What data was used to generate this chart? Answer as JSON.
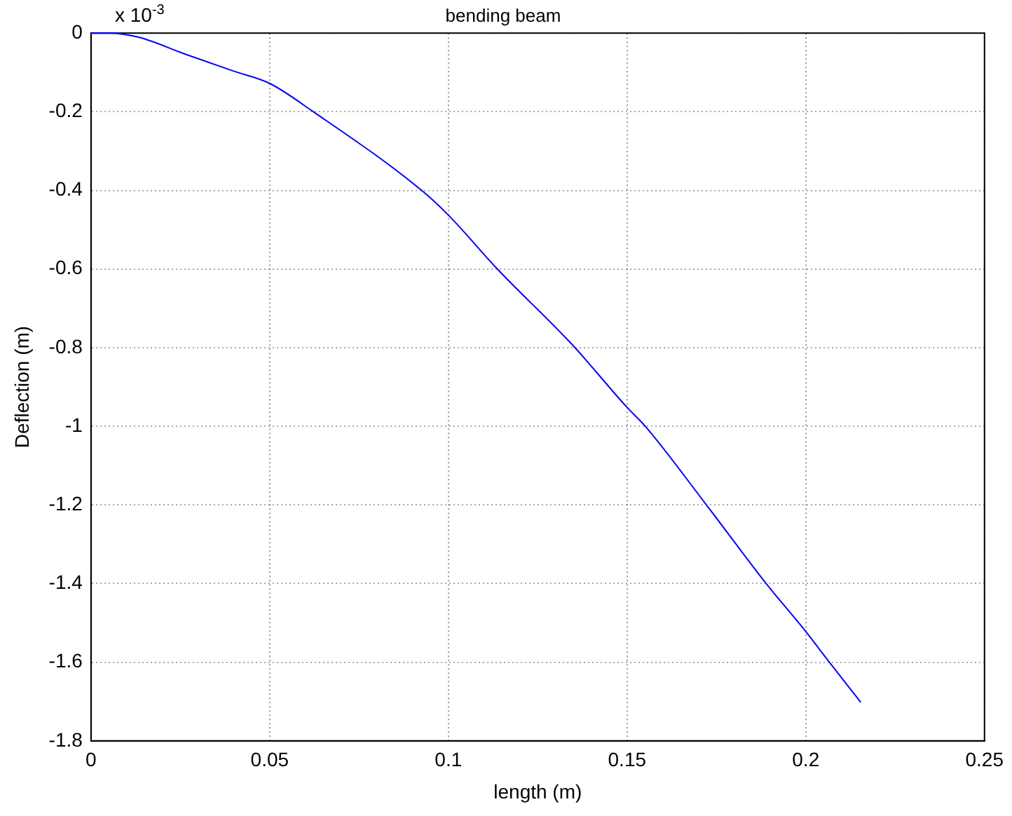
{
  "chart_data": {
    "type": "line",
    "title": "bending beam",
    "xlabel": "length (m)",
    "ylabel": "Deflection (m)",
    "annotations": [
      "x 10$^{-3}$"
    ],
    "series": [
      {
        "color": "#0000ff",
        "x": [
          0,
          0.005,
          0.0131,
          0.0265,
          0.04,
          0.05,
          0.0622,
          0.0925,
          0.1,
          0.1137,
          0.1348,
          0.15,
          0.1551,
          0.1722,
          0.1889,
          0.2,
          0.2066,
          0.2154
        ],
        "values": [
          0,
          0,
          -0.01,
          -0.054,
          -0.097,
          -0.128,
          -0.2,
          -0.4,
          -0.463,
          -0.6,
          -0.794,
          -0.952,
          -1.0,
          -1.2,
          -1.4,
          -1.522,
          -1.6,
          -1.702
        ]
      }
    ],
    "xlim": [
      0,
      0.25
    ],
    "xticks": [
      0,
      0.05,
      0.1,
      0.15,
      0.2,
      0.25
    ],
    "ylim": [
      -1.8,
      0
    ],
    "yticks": [
      -1.8,
      -1.6,
      -1.4,
      -1.2,
      -1,
      -0.8,
      -0.6,
      -0.4,
      -0.2,
      0
    ],
    "grid": true,
    "marker": "none",
    "line_style": "solid",
    "legend": false
  }
}
